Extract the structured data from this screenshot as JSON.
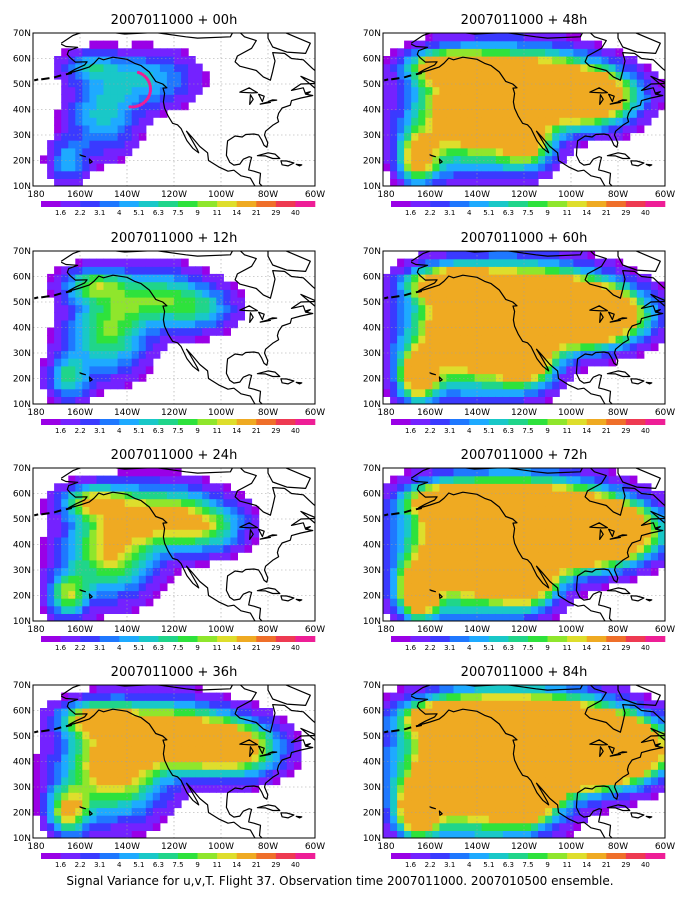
{
  "caption": "Signal Variance for u,v,T. Flight 37. Observation time 2007011000. 2007010500 ensemble.",
  "panels": [
    {
      "title": "2007011000 + 00h",
      "forecast_hour": 0
    },
    {
      "title": "2007011000 + 12h",
      "forecast_hour": 12
    },
    {
      "title": "2007011000 + 24h",
      "forecast_hour": 24
    },
    {
      "title": "2007011000 + 36h",
      "forecast_hour": 36
    },
    {
      "title": "2007011000 + 48h",
      "forecast_hour": 48
    },
    {
      "title": "2007011000 + 60h",
      "forecast_hour": 60
    },
    {
      "title": "2007011000 + 72h",
      "forecast_hour": 72
    },
    {
      "title": "2007011000 + 84h",
      "forecast_hour": 84
    }
  ],
  "lat_labels": [
    "10N",
    "20N",
    "30N",
    "40N",
    "50N",
    "60N",
    "70N"
  ],
  "lon_labels": [
    "180",
    "160W",
    "140W",
    "120W",
    "100W",
    "80W",
    "60W"
  ],
  "colorbar": {
    "labels": [
      "1.6",
      "2.2",
      "3.1",
      "4",
      "5.1",
      "6.3",
      "7.5",
      "9",
      "11",
      "14",
      "21",
      "29",
      "40"
    ],
    "colors": [
      "#9a00e6",
      "#7422ff",
      "#3a3aff",
      "#1f78ff",
      "#1eaaff",
      "#19c8c8",
      "#20d58a",
      "#2ee23c",
      "#8fe62c",
      "#dede2c",
      "#efaa22",
      "#ef6f2a",
      "#ee3a52",
      "#ee1e96"
    ]
  },
  "colors": {
    "land": "#000000",
    "grid": "#a0a0a0"
  }
}
